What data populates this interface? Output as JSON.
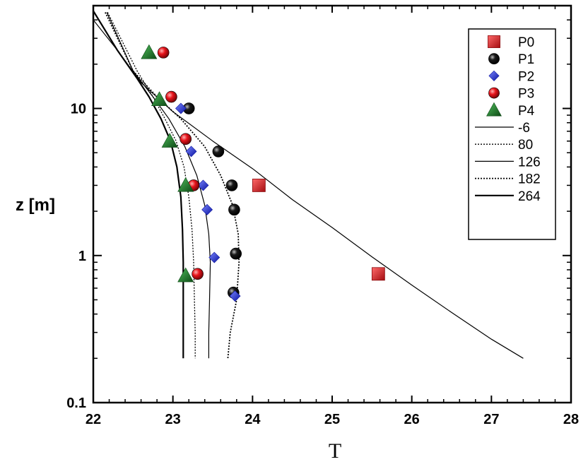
{
  "chart_data": {
    "type": "line",
    "title": "",
    "xlabel": "T",
    "ylabel": "z [m]",
    "xlim": [
      22,
      28
    ],
    "ylim": [
      0.1,
      50
    ],
    "y_scale": "log",
    "x_ticks": [
      "22",
      "23",
      "24",
      "25",
      "26",
      "27",
      "28"
    ],
    "y_ticks": [
      "0.1",
      "1",
      "10"
    ],
    "legend_position": "top-right",
    "grid": false,
    "point_series": [
      {
        "name": "P0",
        "marker": "square",
        "color": "#e8141b",
        "points": [
          [
            24.08,
            3.0
          ],
          [
            25.58,
            0.75
          ]
        ]
      },
      {
        "name": "P1",
        "marker": "circle",
        "color": "#111111",
        "points": [
          [
            23.2,
            10.0
          ],
          [
            23.57,
            5.1
          ],
          [
            23.74,
            3.0
          ],
          [
            23.77,
            2.05
          ],
          [
            23.79,
            1.03
          ],
          [
            23.76,
            0.56
          ]
        ]
      },
      {
        "name": "P2",
        "marker": "diamond",
        "color": "#1f2fd6",
        "points": [
          [
            23.1,
            10.0
          ],
          [
            23.23,
            5.1
          ],
          [
            23.38,
            3.0
          ],
          [
            23.43,
            2.05
          ],
          [
            23.52,
            0.97
          ],
          [
            23.78,
            0.53
          ]
        ]
      },
      {
        "name": "P3",
        "marker": "circle",
        "color": "#e8141b",
        "points": [
          [
            22.88,
            24.0
          ],
          [
            22.98,
            12.0
          ],
          [
            23.16,
            6.2
          ],
          [
            23.26,
            3.0
          ],
          [
            23.31,
            0.75
          ]
        ]
      },
      {
        "name": "P4",
        "marker": "triangle",
        "color": "#1e7a2a",
        "points": [
          [
            22.7,
            24.0
          ],
          [
            22.83,
            11.5
          ],
          [
            22.96,
            6.0
          ],
          [
            23.16,
            3.0
          ],
          [
            23.16,
            0.73
          ]
        ]
      }
    ],
    "line_series": [
      {
        "name": "-6",
        "style": "solid-thin",
        "points": [
          [
            22.0,
            40
          ],
          [
            22.3,
            25
          ],
          [
            22.6,
            15
          ],
          [
            23.0,
            9.5
          ],
          [
            23.5,
            6.0
          ],
          [
            24.0,
            3.9
          ],
          [
            24.5,
            2.4
          ],
          [
            25.0,
            1.55
          ],
          [
            25.5,
            0.98
          ],
          [
            26.0,
            0.63
          ],
          [
            26.5,
            0.41
          ],
          [
            27.0,
            0.27
          ],
          [
            27.4,
            0.2
          ]
        ]
      },
      {
        "name": "80",
        "style": "dotted",
        "points": [
          [
            22.18,
            45
          ],
          [
            22.55,
            18
          ],
          [
            22.75,
            12
          ],
          [
            22.9,
            8.5
          ],
          [
            23.04,
            6.0
          ],
          [
            23.14,
            4.0
          ],
          [
            23.2,
            2.5
          ],
          [
            23.24,
            1.5
          ],
          [
            23.26,
            0.9
          ],
          [
            23.27,
            0.5
          ],
          [
            23.28,
            0.3
          ],
          [
            23.28,
            0.2
          ]
        ]
      },
      {
        "name": "126",
        "style": "solid-thin",
        "points": [
          [
            22.17,
            45
          ],
          [
            22.5,
            18
          ],
          [
            22.75,
            12
          ],
          [
            22.95,
            8.5
          ],
          [
            23.15,
            5.5
          ],
          [
            23.3,
            3.5
          ],
          [
            23.4,
            2.2
          ],
          [
            23.45,
            1.4
          ],
          [
            23.47,
            0.9
          ],
          [
            23.46,
            0.5
          ],
          [
            23.45,
            0.3
          ],
          [
            23.45,
            0.2
          ]
        ]
      },
      {
        "name": "182",
        "style": "dotted-bold",
        "points": [
          [
            22.15,
            45
          ],
          [
            22.5,
            18
          ],
          [
            22.8,
            12
          ],
          [
            23.1,
            8.5
          ],
          [
            23.4,
            5.5
          ],
          [
            23.6,
            3.5
          ],
          [
            23.75,
            2.2
          ],
          [
            23.82,
            1.4
          ],
          [
            23.83,
            0.9
          ],
          [
            23.8,
            0.5
          ],
          [
            23.72,
            0.3
          ],
          [
            23.69,
            0.2
          ]
        ]
      },
      {
        "name": "264",
        "style": "solid-bold",
        "points": [
          [
            22.0,
            46
          ],
          [
            22.3,
            25
          ],
          [
            22.55,
            16
          ],
          [
            22.7,
            12
          ],
          [
            22.85,
            8.5
          ],
          [
            22.97,
            6.0
          ],
          [
            23.05,
            4.0
          ],
          [
            23.1,
            2.5
          ],
          [
            23.12,
            1.5
          ],
          [
            23.13,
            0.9
          ],
          [
            23.13,
            0.5
          ],
          [
            23.13,
            0.3
          ],
          [
            23.13,
            0.2
          ]
        ]
      }
    ]
  }
}
